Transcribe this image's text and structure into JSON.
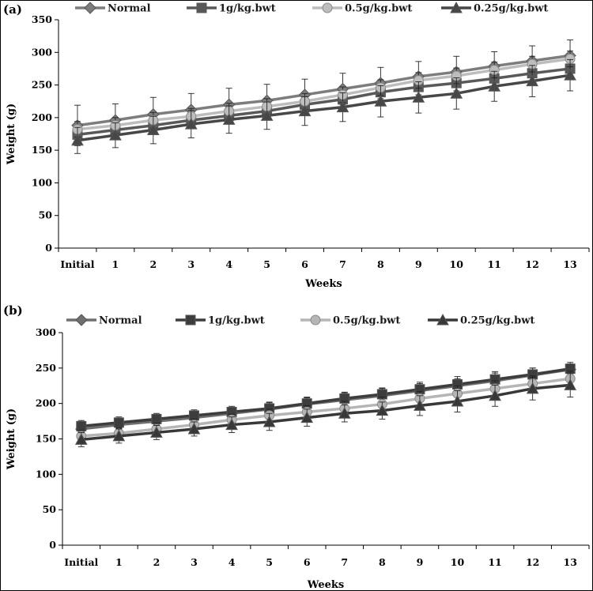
{
  "chart_data": [
    {
      "type": "line",
      "panel_label": "(a)",
      "title": "",
      "xlabel": "Weeks",
      "ylabel": "Weight (g)",
      "categories": [
        "Initial",
        "1",
        "2",
        "3",
        "4",
        "5",
        "6",
        "7",
        "8",
        "9",
        "10",
        "11",
        "12",
        "13"
      ],
      "ylim": [
        0,
        350
      ],
      "yticks": [
        0,
        50,
        100,
        150,
        200,
        250,
        300,
        350
      ],
      "grid": false,
      "legend_position": "top",
      "series": [
        {
          "name": "Normal",
          "marker": "diamond",
          "color": "#7d7d7d",
          "values": [
            188,
            196,
            205,
            212,
            220,
            226,
            235,
            244,
            253,
            263,
            270,
            279,
            287,
            295
          ],
          "errors": [
            31,
            25,
            26,
            25,
            25,
            25,
            24,
            24,
            24,
            23,
            24,
            22,
            23,
            24
          ]
        },
        {
          "name": "1g/kg.bwt",
          "marker": "square",
          "color": "#595959",
          "values": [
            174,
            181,
            188,
            196,
            203,
            210,
            220,
            228,
            239,
            247,
            253,
            260,
            268,
            275
          ],
          "errors": [
            12,
            12,
            12,
            12,
            12,
            12,
            12,
            12,
            12,
            12,
            12,
            12,
            12,
            12
          ]
        },
        {
          "name": "0.5g/kg.bwt",
          "marker": "circle",
          "color": "#bdbdbd",
          "values": [
            182,
            188,
            196,
            202,
            210,
            217,
            225,
            235,
            246,
            257,
            264,
            273,
            282,
            290
          ],
          "errors": [
            12,
            12,
            12,
            12,
            12,
            12,
            12,
            12,
            12,
            12,
            12,
            12,
            12,
            12
          ]
        },
        {
          "name": "0.25g/kg.bwt",
          "marker": "triangle",
          "color": "#474747",
          "values": [
            165,
            173,
            181,
            190,
            197,
            203,
            210,
            216,
            225,
            231,
            237,
            248,
            256,
            265
          ],
          "errors": [
            20,
            19,
            21,
            21,
            21,
            21,
            22,
            22,
            24,
            24,
            24,
            23,
            24,
            24
          ]
        }
      ]
    },
    {
      "type": "line",
      "panel_label": "(b)",
      "title": "",
      "xlabel": "Weeks",
      "ylabel": "Weight (g)",
      "categories": [
        "Initial",
        "1",
        "2",
        "3",
        "4",
        "5",
        "6",
        "7",
        "8",
        "9",
        "10",
        "11",
        "12",
        "13"
      ],
      "ylim": [
        0,
        300
      ],
      "yticks": [
        0,
        50,
        100,
        150,
        200,
        250,
        300
      ],
      "grid": false,
      "legend_position": "top",
      "series": [
        {
          "name": "Normal",
          "marker": "diamond",
          "color": "#6f6f6f",
          "values": [
            164,
            170,
            175,
            180,
            186,
            192,
            199,
            205,
            211,
            218,
            225,
            232,
            240,
            248
          ],
          "errors": [
            8,
            8,
            8,
            8,
            8,
            9,
            9,
            10,
            10,
            10,
            10,
            11,
            10,
            10
          ]
        },
        {
          "name": "1g/kg.bwt",
          "marker": "square",
          "color": "#3d3d3d",
          "values": [
            168,
            173,
            178,
            183,
            188,
            193,
            200,
            207,
            213,
            220,
            227,
            234,
            241,
            249
          ],
          "errors": [
            8,
            8,
            8,
            8,
            8,
            9,
            9,
            9,
            9,
            10,
            11,
            11,
            9,
            7
          ]
        },
        {
          "name": "0.5g/kg.bwt",
          "marker": "circle",
          "color": "#b5b5b5",
          "values": [
            154,
            158,
            164,
            170,
            177,
            183,
            188,
            193,
            199,
            207,
            214,
            221,
            228,
            235
          ],
          "errors": [
            8,
            8,
            8,
            8,
            8,
            9,
            9,
            10,
            10,
            10,
            11,
            11,
            11,
            11
          ]
        },
        {
          "name": "0.25g/kg.bwt",
          "marker": "triangle",
          "color": "#383838",
          "values": [
            149,
            154,
            159,
            164,
            170,
            174,
            180,
            186,
            190,
            197,
            203,
            211,
            221,
            226
          ],
          "errors": [
            10,
            10,
            10,
            10,
            11,
            12,
            12,
            12,
            12,
            14,
            15,
            15,
            16,
            17
          ]
        }
      ]
    }
  ]
}
